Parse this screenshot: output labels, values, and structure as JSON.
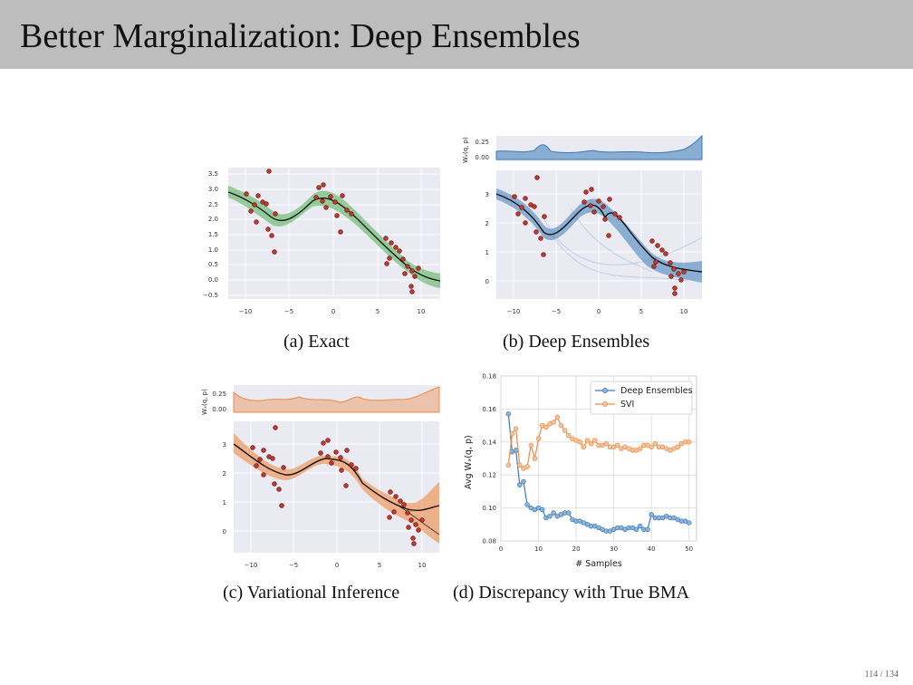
{
  "title": "Better Marginalization: Deep Ensembles",
  "page_number": "114 / 134",
  "colors": {
    "exact": "#4caf50",
    "deep": "#3a7ab8",
    "vi": "#ee8a45",
    "points": "#c0392b",
    "plot_bg": "#eaeaf2",
    "header": "#bdbdbd"
  },
  "panels": [
    {
      "id": "a",
      "caption": "(a) Exact",
      "curve_color": "#4caf50",
      "x_ticks": [
        "−10",
        "−5",
        "0",
        "5",
        "10"
      ],
      "y_ticks": [
        "3.5",
        "3.0",
        "2.5",
        "2.0",
        "1.5",
        "1.0",
        "0.5",
        "0.0",
        "−0.5"
      ]
    },
    {
      "id": "b",
      "caption": "(b) Deep Ensembles",
      "curve_color": "#3a7ab8",
      "x_ticks": [
        "−10",
        "−5",
        "0",
        "5",
        "10"
      ],
      "y_ticks": [
        "3",
        "2",
        "1",
        "0"
      ],
      "top_ylabel": "Wₓ(q, p)",
      "top_ticks": [
        "0.25",
        "0.00"
      ]
    },
    {
      "id": "c",
      "caption": "(c) Variational Inference",
      "curve_color": "#ee8a45",
      "x_ticks": [
        "−10",
        "−5",
        "0",
        "5",
        "10"
      ],
      "y_ticks": [
        "3",
        "2",
        "1",
        "0"
      ],
      "top_ylabel": "Wₓ(q, p)",
      "top_ticks": [
        "0.25",
        "0.00"
      ]
    }
  ],
  "panel_d_caption": "(d) Discrepancy with True BMA",
  "chart_data": {
    "type": "line",
    "title": "",
    "xlabel": "# Samples",
    "ylabel": "Avg Wₓ(q, p)",
    "xlim": [
      0,
      52
    ],
    "ylim": [
      0.08,
      0.18
    ],
    "x_ticks": [
      "0",
      "10",
      "20",
      "30",
      "40",
      "50"
    ],
    "y_ticks": [
      "0.18",
      "0.16",
      "0.14",
      "0.12",
      "0.10",
      "0.08"
    ],
    "legend_position": "top-right",
    "grid": true,
    "x": [
      2,
      3,
      4,
      5,
      6,
      7,
      8,
      9,
      10,
      11,
      12,
      13,
      14,
      15,
      16,
      17,
      18,
      19,
      20,
      21,
      22,
      23,
      24,
      25,
      26,
      27,
      28,
      29,
      30,
      31,
      32,
      33,
      34,
      35,
      36,
      37,
      38,
      39,
      40,
      41,
      42,
      43,
      44,
      45,
      46,
      47,
      48,
      49,
      50
    ],
    "series": [
      {
        "name": "Deep Ensembles",
        "color": "#3a7ab8",
        "values": [
          0.157,
          0.134,
          0.135,
          0.114,
          0.116,
          0.102,
          0.1,
          0.099,
          0.1,
          0.099,
          0.094,
          0.095,
          0.097,
          0.095,
          0.096,
          0.097,
          0.097,
          0.093,
          0.092,
          0.092,
          0.091,
          0.09,
          0.089,
          0.089,
          0.088,
          0.087,
          0.086,
          0.086,
          0.087,
          0.088,
          0.088,
          0.087,
          0.088,
          0.088,
          0.087,
          0.089,
          0.087,
          0.087,
          0.096,
          0.094,
          0.094,
          0.094,
          0.095,
          0.094,
          0.094,
          0.093,
          0.092,
          0.092,
          0.091
        ]
      },
      {
        "name": "SVI",
        "color": "#ee8a45",
        "values": [
          0.126,
          0.145,
          0.148,
          0.126,
          0.124,
          0.125,
          0.138,
          0.13,
          0.142,
          0.15,
          0.149,
          0.151,
          0.152,
          0.155,
          0.15,
          0.147,
          0.144,
          0.142,
          0.141,
          0.14,
          0.137,
          0.141,
          0.139,
          0.141,
          0.138,
          0.138,
          0.139,
          0.137,
          0.137,
          0.138,
          0.136,
          0.137,
          0.136,
          0.135,
          0.135,
          0.136,
          0.138,
          0.138,
          0.137,
          0.139,
          0.137,
          0.137,
          0.136,
          0.135,
          0.136,
          0.137,
          0.139,
          0.14,
          0.14
        ]
      }
    ]
  }
}
